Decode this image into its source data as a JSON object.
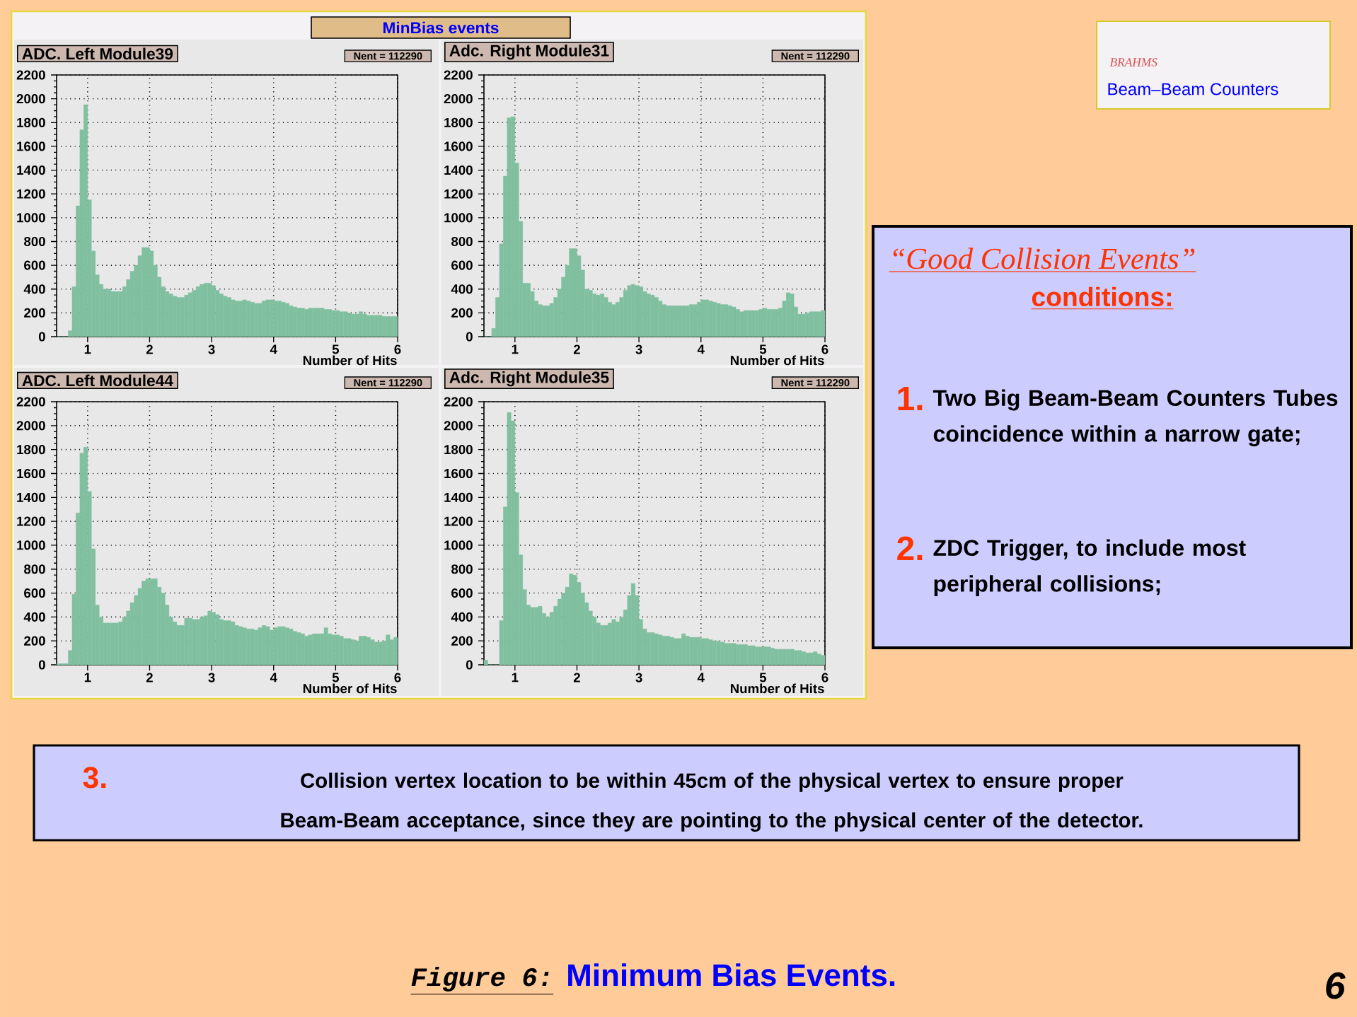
{
  "chart_data": [
    {
      "type": "histogram",
      "title": "ADC. Left Module39",
      "xlabel": "Number of Hits",
      "color": "#80c0a0",
      "grid": true,
      "xlim": [
        0.5,
        6
      ],
      "ylim": [
        0,
        2200
      ],
      "xticks": [
        1,
        2,
        3,
        4,
        5,
        6
      ],
      "yticks": [
        0,
        200,
        400,
        600,
        800,
        1000,
        1200,
        1400,
        1600,
        1800,
        2000,
        2200
      ],
      "annotations": [
        "Nent = 112290"
      ],
      "bins": [
        0.5,
        0.5625,
        0.625,
        0.6875,
        0.75,
        0.8125,
        0.875,
        0.9375,
        1,
        1.0625,
        1.125,
        1.1875,
        1.25,
        1.3125,
        1.375,
        1.4375,
        1.5,
        1.5625,
        1.625,
        1.6875,
        1.75,
        1.8125,
        1.875,
        1.9375,
        2,
        2.0625,
        2.125,
        2.1875,
        2.25,
        2.3125,
        2.375,
        2.4375,
        2.5,
        2.5625,
        2.625,
        2.6875,
        2.75,
        2.8125,
        2.875,
        2.9375,
        3,
        3.0625,
        3.125,
        3.1875,
        3.25,
        3.3125,
        3.375,
        3.4375,
        3.5,
        3.5625,
        3.625,
        3.6875,
        3.75,
        3.8125,
        3.875,
        3.9375,
        4,
        4.0625,
        4.125,
        4.1875,
        4.25,
        4.3125,
        4.375,
        4.4375,
        4.5,
        4.5625,
        4.625,
        4.6875,
        4.75,
        4.8125,
        4.875,
        4.9375,
        5,
        5.0625,
        5.125,
        5.1875,
        5.25,
        5.3125,
        5.375,
        5.4375,
        5.5,
        5.5625,
        5.625,
        5.6875,
        5.75,
        5.8125,
        5.875,
        5.9375,
        6
      ],
      "values": [
        0,
        0,
        0,
        50,
        420,
        1100,
        1740,
        1950,
        1150,
        720,
        520,
        440,
        400,
        400,
        380,
        380,
        380,
        420,
        480,
        550,
        600,
        680,
        750,
        750,
        720,
        600,
        500,
        420,
        380,
        360,
        340,
        330,
        330,
        350,
        370,
        390,
        420,
        440,
        450,
        450,
        430,
        390,
        360,
        340,
        330,
        310,
        300,
        300,
        310,
        300,
        290,
        280,
        280,
        300,
        310,
        310,
        300,
        300,
        290,
        280,
        260,
        250,
        240,
        240,
        230,
        240,
        240,
        240,
        240,
        230,
        230,
        220,
        220,
        210,
        210,
        200,
        190,
        190,
        210,
        190,
        180,
        180,
        180,
        180,
        170,
        170,
        170,
        170
      ]
    },
    {
      "type": "histogram",
      "title": "Adc. Right Module31",
      "xlabel": "Number of Hits",
      "color": "#80c0a0",
      "grid": true,
      "xlim": [
        0.5,
        6
      ],
      "ylim": [
        0,
        2200
      ],
      "xticks": [
        1,
        2,
        3,
        4,
        5,
        6
      ],
      "yticks": [
        0,
        200,
        400,
        600,
        800,
        1000,
        1200,
        1400,
        1600,
        1800,
        2000,
        2200
      ],
      "annotations": [
        "Nent = 112290"
      ],
      "bins": [
        0.5,
        0.5625,
        0.625,
        0.6875,
        0.75,
        0.8125,
        0.875,
        0.9375,
        1,
        1.0625,
        1.125,
        1.1875,
        1.25,
        1.3125,
        1.375,
        1.4375,
        1.5,
        1.5625,
        1.625,
        1.6875,
        1.75,
        1.8125,
        1.875,
        1.9375,
        2,
        2.0625,
        2.125,
        2.1875,
        2.25,
        2.3125,
        2.375,
        2.4375,
        2.5,
        2.5625,
        2.625,
        2.6875,
        2.75,
        2.8125,
        2.875,
        2.9375,
        3,
        3.0625,
        3.125,
        3.1875,
        3.25,
        3.3125,
        3.375,
        3.4375,
        3.5,
        3.5625,
        3.625,
        3.6875,
        3.75,
        3.8125,
        3.875,
        3.9375,
        4,
        4.0625,
        4.125,
        4.1875,
        4.25,
        4.3125,
        4.375,
        4.4375,
        4.5,
        4.5625,
        4.625,
        4.6875,
        4.75,
        4.8125,
        4.875,
        4.9375,
        5,
        5.0625,
        5.125,
        5.1875,
        5.25,
        5.3125,
        5.375,
        5.4375,
        5.5,
        5.5625,
        5.625,
        5.6875,
        5.75,
        5.8125,
        5.875,
        5.9375,
        6
      ],
      "values": [
        0,
        0,
        70,
        330,
        780,
        1350,
        1840,
        1850,
        1460,
        970,
        450,
        450,
        380,
        300,
        270,
        260,
        260,
        280,
        330,
        400,
        500,
        600,
        740,
        740,
        680,
        560,
        400,
        390,
        360,
        350,
        360,
        330,
        290,
        270,
        290,
        330,
        390,
        430,
        440,
        430,
        420,
        380,
        360,
        350,
        330,
        300,
        270,
        260,
        260,
        260,
        260,
        260,
        260,
        270,
        270,
        290,
        310,
        310,
        300,
        290,
        280,
        270,
        270,
        260,
        250,
        230,
        210,
        220,
        220,
        220,
        220,
        230,
        240,
        230,
        230,
        230,
        240,
        300,
        370,
        360,
        250,
        190,
        190,
        200,
        210,
        210,
        210,
        220
      ]
    },
    {
      "type": "histogram",
      "title": "ADC. Left Module44",
      "xlabel": "Number of Hits",
      "color": "#80c0a0",
      "grid": true,
      "xlim": [
        0.5,
        6
      ],
      "ylim": [
        0,
        2200
      ],
      "xticks": [
        1,
        2,
        3,
        4,
        5,
        6
      ],
      "yticks": [
        0,
        200,
        400,
        600,
        800,
        1000,
        1200,
        1400,
        1600,
        1800,
        2000,
        2200
      ],
      "annotations": [
        "Nent = 112290"
      ],
      "bins": [
        0.5,
        0.5625,
        0.625,
        0.6875,
        0.75,
        0.8125,
        0.875,
        0.9375,
        1,
        1.0625,
        1.125,
        1.1875,
        1.25,
        1.3125,
        1.375,
        1.4375,
        1.5,
        1.5625,
        1.625,
        1.6875,
        1.75,
        1.8125,
        1.875,
        1.9375,
        2,
        2.0625,
        2.125,
        2.1875,
        2.25,
        2.3125,
        2.375,
        2.4375,
        2.5,
        2.5625,
        2.625,
        2.6875,
        2.75,
        2.8125,
        2.875,
        2.9375,
        3,
        3.0625,
        3.125,
        3.1875,
        3.25,
        3.3125,
        3.375,
        3.4375,
        3.5,
        3.5625,
        3.625,
        3.6875,
        3.75,
        3.8125,
        3.875,
        3.9375,
        4,
        4.0625,
        4.125,
        4.1875,
        4.25,
        4.3125,
        4.375,
        4.4375,
        4.5,
        4.5625,
        4.625,
        4.6875,
        4.75,
        4.8125,
        4.875,
        4.9375,
        5,
        5.0625,
        5.125,
        5.1875,
        5.25,
        5.3125,
        5.375,
        5.4375,
        5.5,
        5.5625,
        5.625,
        5.6875,
        5.75,
        5.8125,
        5.875,
        5.9375,
        6
      ],
      "values": [
        10,
        10,
        10,
        120,
        590,
        1270,
        1770,
        1820,
        1450,
        970,
        500,
        400,
        350,
        350,
        350,
        350,
        360,
        400,
        450,
        520,
        580,
        640,
        700,
        720,
        720,
        720,
        650,
        600,
        500,
        400,
        360,
        330,
        330,
        390,
        390,
        380,
        380,
        400,
        410,
        450,
        440,
        420,
        380,
        370,
        370,
        360,
        330,
        320,
        310,
        300,
        300,
        290,
        310,
        330,
        320,
        290,
        310,
        320,
        320,
        310,
        300,
        280,
        270,
        260,
        240,
        250,
        260,
        260,
        260,
        310,
        260,
        250,
        250,
        240,
        220,
        220,
        210,
        200,
        240,
        240,
        230,
        210,
        190,
        190,
        200,
        250,
        210,
        230
      ]
    },
    {
      "type": "histogram",
      "title": "Adc. Right Module35",
      "xlabel": "Number of Hits",
      "color": "#80c0a0",
      "grid": true,
      "xlim": [
        0.5,
        6
      ],
      "ylim": [
        0,
        2200
      ],
      "xticks": [
        1,
        2,
        3,
        4,
        5,
        6
      ],
      "yticks": [
        0,
        200,
        400,
        600,
        800,
        1000,
        1200,
        1400,
        1600,
        1800,
        2000,
        2200
      ],
      "annotations": [
        "Nent = 112290"
      ],
      "bins": [
        0.5,
        0.5625,
        0.625,
        0.6875,
        0.75,
        0.8125,
        0.875,
        0.9375,
        1,
        1.0625,
        1.125,
        1.1875,
        1.25,
        1.3125,
        1.375,
        1.4375,
        1.5,
        1.5625,
        1.625,
        1.6875,
        1.75,
        1.8125,
        1.875,
        1.9375,
        2,
        2.0625,
        2.125,
        2.1875,
        2.25,
        2.3125,
        2.375,
        2.4375,
        2.5,
        2.5625,
        2.625,
        2.6875,
        2.75,
        2.8125,
        2.875,
        2.9375,
        3,
        3.0625,
        3.125,
        3.1875,
        3.25,
        3.3125,
        3.375,
        3.4375,
        3.5,
        3.5625,
        3.625,
        3.6875,
        3.75,
        3.8125,
        3.875,
        3.9375,
        4,
        4.0625,
        4.125,
        4.1875,
        4.25,
        4.3125,
        4.375,
        4.4375,
        4.5,
        4.5625,
        4.625,
        4.6875,
        4.75,
        4.8125,
        4.875,
        4.9375,
        5,
        5.0625,
        5.125,
        5.1875,
        5.25,
        5.3125,
        5.375,
        5.4375,
        5.5,
        5.5625,
        5.625,
        5.6875,
        5.75,
        5.8125,
        5.875,
        5.9375,
        6
      ],
      "values": [
        40,
        0,
        0,
        0,
        370,
        1320,
        2110,
        2040,
        1440,
        920,
        630,
        500,
        480,
        480,
        490,
        430,
        400,
        440,
        490,
        550,
        600,
        650,
        760,
        750,
        690,
        600,
        520,
        450,
        400,
        350,
        330,
        330,
        350,
        380,
        360,
        400,
        460,
        580,
        680,
        580,
        380,
        300,
        270,
        270,
        260,
        250,
        240,
        240,
        230,
        220,
        220,
        260,
        240,
        230,
        230,
        230,
        220,
        220,
        210,
        200,
        200,
        190,
        180,
        180,
        180,
        170,
        170,
        170,
        160,
        160,
        150,
        150,
        150,
        150,
        140,
        130,
        130,
        130,
        130,
        130,
        120,
        120,
        110,
        100,
        100,
        110,
        90,
        80
      ]
    },
    {
      "type": "other",
      "annotations": [
        "MinBias events",
        "BRAHMS",
        "Beam–Beam Counters",
        "“Good Collision Events”",
        "conditions:",
        "1.",
        "Two Big Beam-Beam Counters Tubes coincidence within a narrow gate;",
        "2.",
        "ZDC Trigger, to include most peripheral collisions;",
        "3.",
        "Collision vertex location to be within 45cm of the physical vertex to ensure proper Beam-Beam acceptance, since they are pointing to the physical center of the detector.",
        "Figure 6:",
        "Minimum Bias Events.",
        "6"
      ]
    }
  ]
}
